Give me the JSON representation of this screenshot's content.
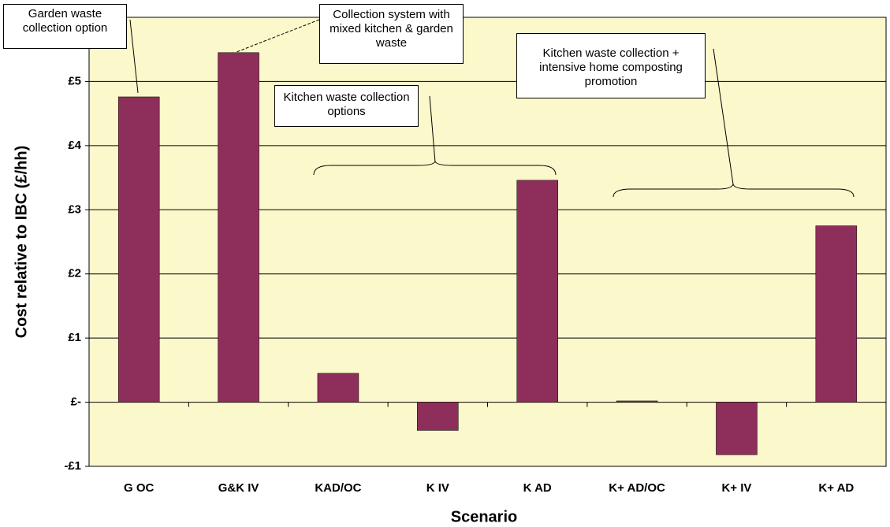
{
  "chart_data": {
    "type": "bar",
    "x_label": "Scenario",
    "y_label": "Cost relative to IBC (£/hh)",
    "categories": [
      "G OC",
      "G&K IV",
      "KAD/OC",
      "K IV",
      "K AD",
      "K+ AD/OC",
      "K+ IV",
      "K+ AD"
    ],
    "values": [
      4.76,
      5.45,
      0.45,
      -0.44,
      3.46,
      0.02,
      -0.82,
      2.75
    ],
    "color": "#8e2f5b",
    "ylim": [
      -1,
      6
    ],
    "yticks": [
      {
        "value": -1,
        "label": "-£1"
      },
      {
        "value": 0,
        "label": "£-"
      },
      {
        "value": 1,
        "label": "£1"
      },
      {
        "value": 2,
        "label": "£2"
      },
      {
        "value": 3,
        "label": "£3"
      },
      {
        "value": 4,
        "label": "£4"
      },
      {
        "value": 5,
        "label": "£5"
      }
    ],
    "grid": true,
    "annotations": [
      "Garden waste collection option",
      "Collection system with mixed kitchen & garden waste",
      "Kitchen waste collection options",
      "Kitchen waste collection + intensive home composting promotion"
    ]
  }
}
